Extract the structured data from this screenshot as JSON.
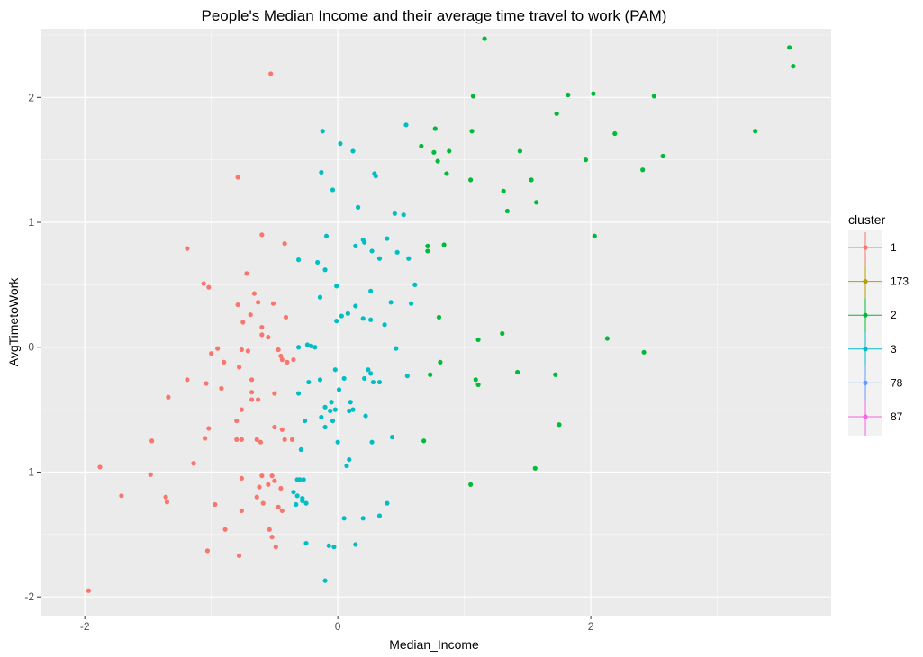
{
  "chart_data": {
    "type": "scatter",
    "title": "People's Median Income and their average time travel to work (PAM)",
    "xlabel": "Median_Income",
    "ylabel": "AvgTimetoWork",
    "xlim": [
      -2.35,
      3.9
    ],
    "ylim": [
      -2.15,
      2.55
    ],
    "xticks": [
      -2,
      0,
      2
    ],
    "yticks": [
      -2,
      -1,
      0,
      1,
      2
    ],
    "xtick_labels": [
      "-2",
      "0",
      "2"
    ],
    "ytick_labels": [
      "-2",
      "-1",
      "0",
      "1",
      "2"
    ],
    "grid": true,
    "background": "#ebebeb",
    "legend": {
      "title": "cluster",
      "position": "right",
      "entries": [
        {
          "label": "1",
          "color": "#f8766d"
        },
        {
          "label": "173",
          "color": "#b79f00"
        },
        {
          "label": "2",
          "color": "#00ba38"
        },
        {
          "label": "3",
          "color": "#00bfc4"
        },
        {
          "label": "78",
          "color": "#619cff"
        },
        {
          "label": "87",
          "color": "#f564e3"
        }
      ]
    },
    "series": [
      {
        "name": "1",
        "color": "#f8766d",
        "points": [
          [
            -0.53,
            2.19
          ],
          [
            -0.79,
            1.36
          ],
          [
            -1.19,
            0.79
          ],
          [
            -0.6,
            0.9
          ],
          [
            -0.42,
            0.83
          ],
          [
            -1.06,
            0.51
          ],
          [
            -1.02,
            0.48
          ],
          [
            -0.72,
            0.59
          ],
          [
            -0.66,
            0.43
          ],
          [
            -0.79,
            0.34
          ],
          [
            -0.63,
            0.36
          ],
          [
            -0.51,
            0.35
          ],
          [
            -0.41,
            0.24
          ],
          [
            -0.69,
            0.26
          ],
          [
            -0.75,
            0.2
          ],
          [
            -0.6,
            0.16
          ],
          [
            -0.6,
            0.1
          ],
          [
            -0.55,
            0.08
          ],
          [
            -0.95,
            -0.01
          ],
          [
            -1,
            -0.05
          ],
          [
            -0.76,
            -0.02
          ],
          [
            -0.71,
            -0.03
          ],
          [
            -0.47,
            -0.02
          ],
          [
            -0.45,
            -0.07
          ],
          [
            -0.4,
            -0.12
          ],
          [
            -0.44,
            -0.1
          ],
          [
            -0.35,
            -0.1
          ],
          [
            -0.9,
            -0.12
          ],
          [
            -0.78,
            -0.16
          ],
          [
            -1.19,
            -0.26
          ],
          [
            -0.68,
            -0.26
          ],
          [
            -1.04,
            -0.29
          ],
          [
            -0.92,
            -0.33
          ],
          [
            -0.68,
            -0.36
          ],
          [
            -1.34,
            -0.4
          ],
          [
            -0.68,
            -0.42
          ],
          [
            -0.63,
            -0.42
          ],
          [
            -0.5,
            -0.37
          ],
          [
            -0.76,
            -0.5
          ],
          [
            -0.8,
            -0.59
          ],
          [
            -1.02,
            -0.65
          ],
          [
            -0.5,
            -0.64
          ],
          [
            -0.44,
            -0.66
          ],
          [
            -0.76,
            -0.74
          ],
          [
            -0.8,
            -0.74
          ],
          [
            -0.64,
            -0.74
          ],
          [
            -0.61,
            -0.76
          ],
          [
            -0.42,
            -0.74
          ],
          [
            -0.36,
            -0.74
          ],
          [
            -1.47,
            -0.75
          ],
          [
            -1.05,
            -0.73
          ],
          [
            -1.14,
            -0.93
          ],
          [
            -1.88,
            -0.96
          ],
          [
            -0.6,
            -1.03
          ],
          [
            -0.52,
            -1.03
          ],
          [
            -0.76,
            -1.05
          ],
          [
            -0.5,
            -1.07
          ],
          [
            -1.48,
            -1.02
          ],
          [
            -0.62,
            -1.12
          ],
          [
            -0.55,
            -1.1
          ],
          [
            -0.45,
            -1.13
          ],
          [
            -1.36,
            -1.2
          ],
          [
            -1.35,
            -1.24
          ],
          [
            -1.71,
            -1.19
          ],
          [
            -0.64,
            -1.2
          ],
          [
            -0.59,
            -1.25
          ],
          [
            -0.97,
            -1.26
          ],
          [
            -0.47,
            -1.28
          ],
          [
            -0.44,
            -1.31
          ],
          [
            -0.76,
            -1.31
          ],
          [
            -0.89,
            -1.46
          ],
          [
            -0.54,
            -1.46
          ],
          [
            -0.52,
            -1.52
          ],
          [
            -0.49,
            -1.6
          ],
          [
            -1.03,
            -1.63
          ],
          [
            -0.78,
            -1.67
          ],
          [
            -1.97,
            -1.95
          ]
        ]
      },
      {
        "name": "2",
        "color": "#00ba38",
        "points": [
          [
            1.16,
            2.47
          ],
          [
            3.57,
            2.4
          ],
          [
            3.6,
            2.25
          ],
          [
            2.02,
            2.03
          ],
          [
            1.82,
            2.02
          ],
          [
            1.07,
            2.01
          ],
          [
            2.5,
            2.01
          ],
          [
            1.73,
            1.87
          ],
          [
            0.77,
            1.75
          ],
          [
            1.06,
            1.73
          ],
          [
            3.3,
            1.73
          ],
          [
            2.19,
            1.71
          ],
          [
            0.66,
            1.61
          ],
          [
            0.88,
            1.57
          ],
          [
            0.76,
            1.56
          ],
          [
            1.44,
            1.57
          ],
          [
            2.57,
            1.53
          ],
          [
            1.96,
            1.5
          ],
          [
            0.79,
            1.49
          ],
          [
            0.86,
            1.39
          ],
          [
            2.41,
            1.42
          ],
          [
            1.05,
            1.34
          ],
          [
            1.53,
            1.34
          ],
          [
            1.31,
            1.25
          ],
          [
            1.57,
            1.16
          ],
          [
            1.34,
            1.09
          ],
          [
            2.03,
            0.89
          ],
          [
            0.71,
            0.81
          ],
          [
            0.84,
            0.82
          ],
          [
            0.71,
            0.77
          ],
          [
            0.8,
            0.24
          ],
          [
            1.3,
            0.11
          ],
          [
            1.11,
            0.06
          ],
          [
            2.13,
            0.07
          ],
          [
            2.42,
            -0.04
          ],
          [
            0.81,
            -0.12
          ],
          [
            1.42,
            -0.2
          ],
          [
            0.73,
            -0.22
          ],
          [
            1.72,
            -0.22
          ],
          [
            1.09,
            -0.26
          ],
          [
            1.11,
            -0.3
          ],
          [
            1.75,
            -0.62
          ],
          [
            0.68,
            -0.75
          ],
          [
            1.56,
            -0.97
          ],
          [
            1.05,
            -1.1
          ]
        ]
      },
      {
        "name": "3",
        "color": "#00bfc4",
        "points": [
          [
            0.54,
            1.78
          ],
          [
            -0.12,
            1.73
          ],
          [
            0.02,
            1.63
          ],
          [
            0.12,
            1.57
          ],
          [
            -0.13,
            1.4
          ],
          [
            0.29,
            1.39
          ],
          [
            0.3,
            1.37
          ],
          [
            -0.04,
            1.26
          ],
          [
            0.16,
            1.12
          ],
          [
            0.45,
            1.07
          ],
          [
            0.52,
            1.06
          ],
          [
            0.39,
            0.87
          ],
          [
            0.2,
            0.86
          ],
          [
            0.21,
            0.84
          ],
          [
            0.14,
            0.81
          ],
          [
            -0.09,
            0.89
          ],
          [
            0.27,
            0.77
          ],
          [
            0.47,
            0.76
          ],
          [
            0.56,
            0.71
          ],
          [
            0.33,
            0.71
          ],
          [
            -0.31,
            0.7
          ],
          [
            -0.16,
            0.68
          ],
          [
            -0.1,
            0.62
          ],
          [
            0.61,
            0.5
          ],
          [
            -0.01,
            0.49
          ],
          [
            0.26,
            0.45
          ],
          [
            -0.14,
            0.4
          ],
          [
            0.42,
            0.36
          ],
          [
            0.58,
            0.35
          ],
          [
            0.14,
            0.33
          ],
          [
            0.08,
            0.27
          ],
          [
            0.03,
            0.25
          ],
          [
            0.26,
            0.22
          ],
          [
            0.2,
            0.23
          ],
          [
            -0.01,
            0.21
          ],
          [
            0.37,
            0.18
          ],
          [
            -0.24,
            0.02
          ],
          [
            -0.21,
            0.01
          ],
          [
            -0.31,
            0
          ],
          [
            -0.18,
            0
          ],
          [
            0.46,
            -0.01
          ],
          [
            -0.02,
            -0.18
          ],
          [
            0.24,
            -0.18
          ],
          [
            0.26,
            -0.21
          ],
          [
            0.21,
            -0.25
          ],
          [
            0.55,
            -0.23
          ],
          [
            0.05,
            -0.25
          ],
          [
            -0.14,
            -0.26
          ],
          [
            0.28,
            -0.28
          ],
          [
            0.33,
            -0.28
          ],
          [
            -0.23,
            -0.28
          ],
          [
            0.01,
            -0.34
          ],
          [
            -0.31,
            -0.37
          ],
          [
            -0.05,
            -0.44
          ],
          [
            0.1,
            -0.44
          ],
          [
            -0.1,
            -0.48
          ],
          [
            -0.06,
            -0.51
          ],
          [
            -0.02,
            -0.5
          ],
          [
            0.09,
            -0.51
          ],
          [
            0.12,
            -0.5
          ],
          [
            -0.13,
            -0.56
          ],
          [
            -0.26,
            -0.59
          ],
          [
            0.22,
            -0.55
          ],
          [
            -0.1,
            -0.64
          ],
          [
            -0.04,
            -0.59
          ],
          [
            0.43,
            -0.72
          ],
          [
            0.0,
            -0.76
          ],
          [
            -0.29,
            -0.82
          ],
          [
            0.27,
            -0.76
          ],
          [
            0.09,
            -0.9
          ],
          [
            0.07,
            -0.95
          ],
          [
            -0.32,
            -1.06
          ],
          [
            -0.3,
            -1.06
          ],
          [
            -0.27,
            -1.06
          ],
          [
            0.39,
            -1.25
          ],
          [
            -0.35,
            -1.16
          ],
          [
            -0.32,
            -1.19
          ],
          [
            -0.28,
            -1.23
          ],
          [
            -0.28,
            -1.21
          ],
          [
            -0.33,
            -1.26
          ],
          [
            -0.25,
            -1.25
          ],
          [
            0.33,
            -1.35
          ],
          [
            0.05,
            -1.37
          ],
          [
            0.2,
            -1.37
          ],
          [
            -0.25,
            -1.57
          ],
          [
            -0.07,
            -1.59
          ],
          [
            -0.03,
            -1.6
          ],
          [
            0.14,
            -1.58
          ],
          [
            -0.1,
            -1.87
          ]
        ]
      }
    ]
  }
}
